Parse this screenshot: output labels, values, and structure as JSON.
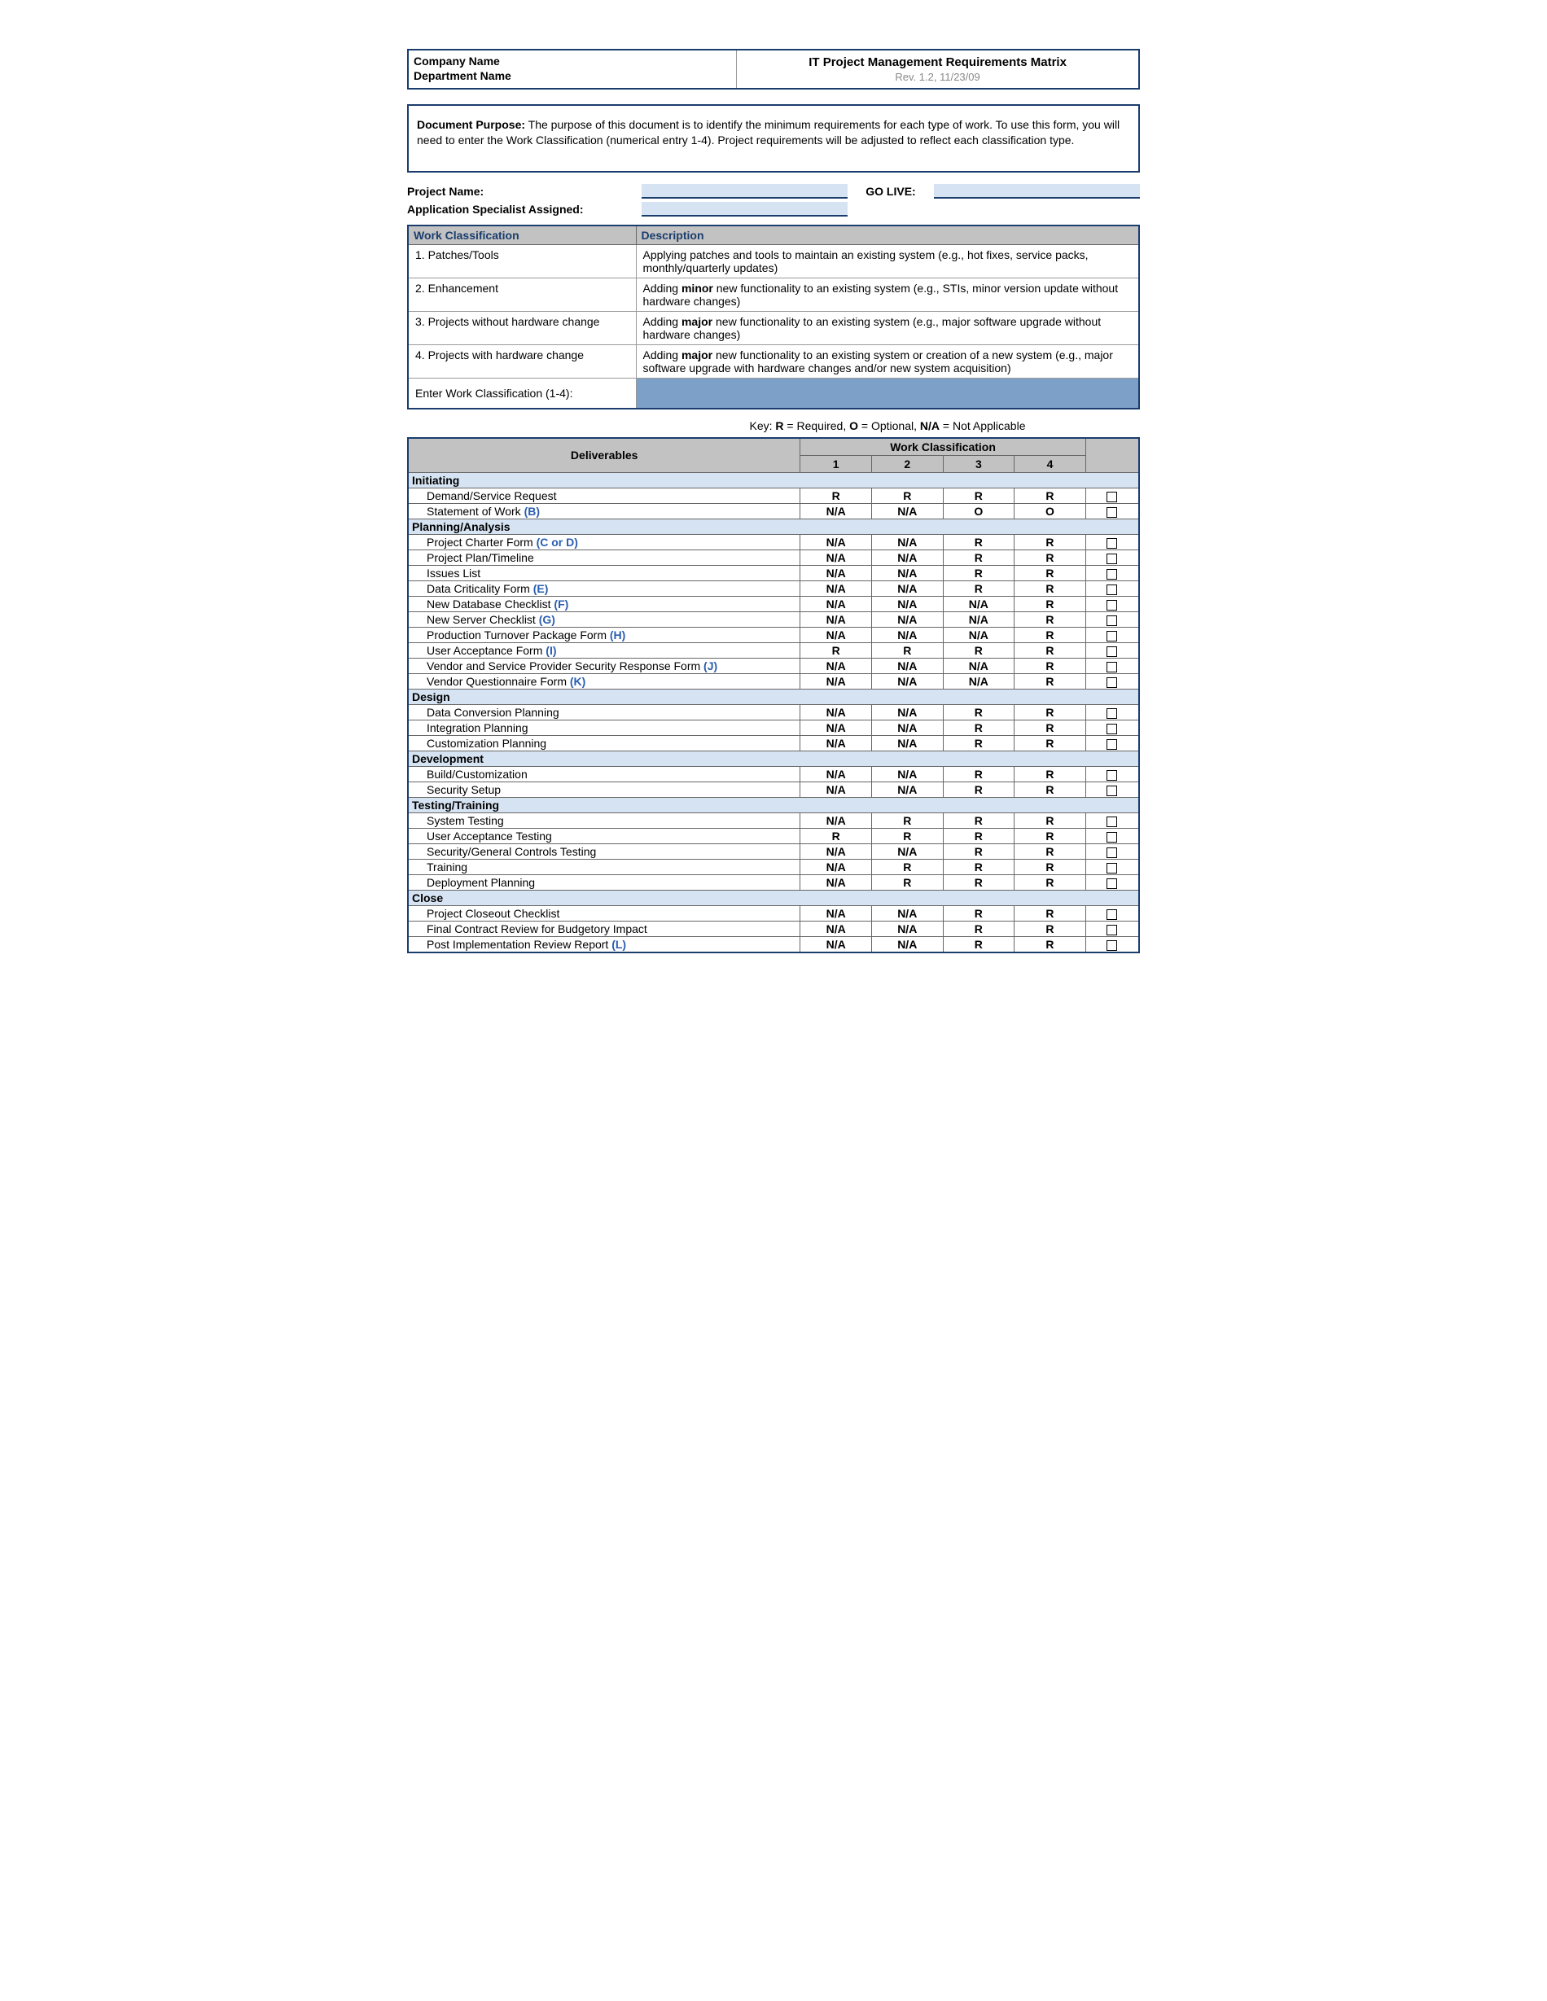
{
  "header": {
    "company": "Company Name",
    "department": "Department Name",
    "title": "IT Project Management Requirements Matrix",
    "revision": "Rev. 1.2, 11/23/09"
  },
  "purpose": {
    "label": "Document Purpose:",
    "text": "The purpose of this document is to identify the minimum requirements for each type of work.  To use this form, you will need to enter the Work Classification (numerical entry 1-4).  Project requirements will be adjusted to reflect each classification type."
  },
  "fields": {
    "project_name_label": "Project Name:",
    "go_live_label": "GO LIVE:",
    "app_specialist_label": "Application Specialist Assigned:"
  },
  "classification_table": {
    "col1": "Work Classification",
    "col2": "Description",
    "rows": [
      {
        "label": "1. Patches/Tools",
        "desc_pre": "Applying patches and tools to maintain an existing system (e.g., hot fixes, service packs, monthly/quarterly updates)",
        "bold": ""
      },
      {
        "label": "2. Enhancement",
        "desc_pre": "Adding ",
        "bold": "minor",
        "desc_post": " new functionality to an existing system (e.g., STIs, minor version update without hardware changes)"
      },
      {
        "label": "3. Projects without hardware change",
        "desc_pre": "Adding ",
        "bold": "major",
        "desc_post": " new functionality to an existing system (e.g., major software upgrade without hardware changes)"
      },
      {
        "label": "4. Projects with hardware change",
        "desc_pre": "Adding ",
        "bold": "major",
        "desc_post": " new functionality to an existing system or creation of a new system (e.g., major software upgrade with hardware changes and/or new system acquisition)"
      }
    ],
    "enter_label": "Enter Work Classification (1-4):"
  },
  "key": {
    "prefix": "Key:  ",
    "r": "R",
    "r_txt": " = Required, ",
    "o": "O",
    "o_txt": " = Optional, ",
    "na": "N/A",
    "na_txt": " = Not Applicable"
  },
  "deliverables_header": {
    "deliverables": "Deliverables",
    "work_class": "Work Classification",
    "c1": "1",
    "c2": "2",
    "c3": "3",
    "c4": "4"
  },
  "sections": [
    {
      "name": "Initiating",
      "items": [
        {
          "label": "Demand/Service Request",
          "ref": "",
          "v": [
            "R",
            "R",
            "R",
            "R"
          ]
        },
        {
          "label": "Statement of Work ",
          "ref": "(B)",
          "v": [
            "N/A",
            "N/A",
            "O",
            "O"
          ]
        }
      ]
    },
    {
      "name": "Planning/Analysis",
      "items": [
        {
          "label": "Project Charter Form ",
          "ref": "(C or D)",
          "v": [
            "N/A",
            "N/A",
            "R",
            "R"
          ]
        },
        {
          "label": "Project Plan/Timeline",
          "ref": "",
          "v": [
            "N/A",
            "N/A",
            "R",
            "R"
          ]
        },
        {
          "label": "Issues List",
          "ref": "",
          "v": [
            "N/A",
            "N/A",
            "R",
            "R"
          ]
        },
        {
          "label": "Data Criticality Form ",
          "ref": "(E)",
          "v": [
            "N/A",
            "N/A",
            "R",
            "R"
          ]
        },
        {
          "label": "New Database Checklist ",
          "ref": "(F)",
          "v": [
            "N/A",
            "N/A",
            "N/A",
            "R"
          ]
        },
        {
          "label": "New Server Checklist ",
          "ref": "(G)",
          "v": [
            "N/A",
            "N/A",
            "N/A",
            "R"
          ]
        },
        {
          "label": "Production Turnover Package Form ",
          "ref": "(H)",
          "v": [
            "N/A",
            "N/A",
            "N/A",
            "R"
          ]
        },
        {
          "label": "User Acceptance Form ",
          "ref": "(I)",
          "v": [
            "R",
            "R",
            "R",
            "R"
          ]
        },
        {
          "label": "Vendor and Service Provider Security Response Form ",
          "ref": "(J)",
          "v": [
            "N/A",
            "N/A",
            "N/A",
            "R"
          ]
        },
        {
          "label": "Vendor Questionnaire Form ",
          "ref": "(K)",
          "v": [
            "N/A",
            "N/A",
            "N/A",
            "R"
          ]
        }
      ]
    },
    {
      "name": "Design",
      "items": [
        {
          "label": "Data Conversion Planning",
          "ref": "",
          "v": [
            "N/A",
            "N/A",
            "R",
            "R"
          ]
        },
        {
          "label": "Integration Planning",
          "ref": "",
          "v": [
            "N/A",
            "N/A",
            "R",
            "R"
          ]
        },
        {
          "label": "Customization Planning",
          "ref": "",
          "v": [
            "N/A",
            "N/A",
            "R",
            "R"
          ]
        }
      ]
    },
    {
      "name": "Development",
      "items": [
        {
          "label": "Build/Customization",
          "ref": "",
          "v": [
            "N/A",
            "N/A",
            "R",
            "R"
          ]
        },
        {
          "label": "Security Setup",
          "ref": "",
          "v": [
            "N/A",
            "N/A",
            "R",
            "R"
          ]
        }
      ]
    },
    {
      "name": "Testing/Training",
      "items": [
        {
          "label": "System Testing",
          "ref": "",
          "v": [
            "N/A",
            "R",
            "R",
            "R"
          ]
        },
        {
          "label": "User Acceptance Testing",
          "ref": "",
          "v": [
            "R",
            "R",
            "R",
            "R"
          ]
        },
        {
          "label": "Security/General Controls Testing",
          "ref": "",
          "v": [
            "N/A",
            "N/A",
            "R",
            "R"
          ]
        },
        {
          "label": "Training",
          "ref": "",
          "v": [
            "N/A",
            "R",
            "R",
            "R"
          ]
        },
        {
          "label": "Deployment Planning",
          "ref": "",
          "v": [
            "N/A",
            "R",
            "R",
            "R"
          ]
        }
      ]
    },
    {
      "name": "Close",
      "items": [
        {
          "label": "Project Closeout Checklist",
          "ref": "",
          "v": [
            "N/A",
            "N/A",
            "R",
            "R"
          ]
        },
        {
          "label": "Final Contract Review for Budgetory Impact",
          "ref": "",
          "v": [
            "N/A",
            "N/A",
            "R",
            "R"
          ]
        },
        {
          "label": "Post Implementation Review Report ",
          "ref": "(L)",
          "v": [
            "N/A",
            "N/A",
            "R",
            "R"
          ]
        }
      ]
    }
  ],
  "colors": {
    "border_navy": "#1a3d6d",
    "header_gray": "#c2c2c2",
    "section_blue": "#d6e3f2",
    "input_blue": "#7da0c9",
    "link_blue": "#2a5db0"
  }
}
